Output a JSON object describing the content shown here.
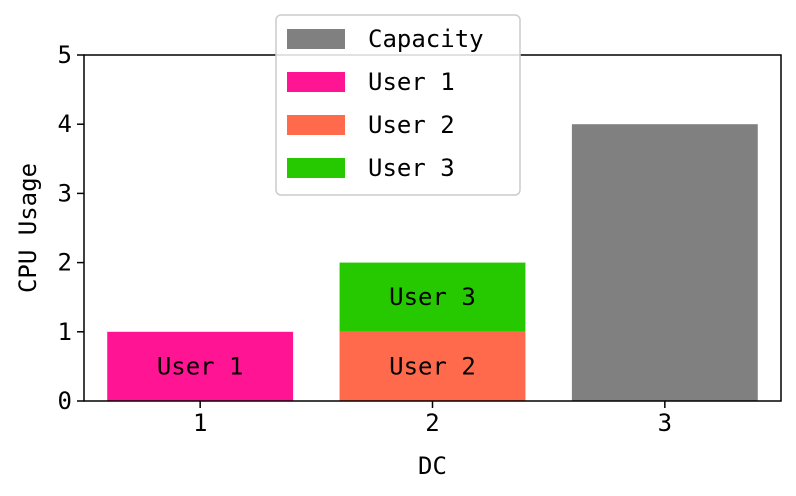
{
  "chart_data": {
    "type": "bar",
    "stacked": true,
    "xlabel": "DC",
    "ylabel": "CPU Usage",
    "categories": [
      "1",
      "2",
      "3"
    ],
    "ylim": [
      0,
      5
    ],
    "yticks": [
      "0",
      "1",
      "2",
      "3",
      "4",
      "5"
    ],
    "grid": false,
    "legend_position": "top-center",
    "series": [
      {
        "name": "Capacity",
        "color": "#808080",
        "values": [
          0,
          0,
          4
        ]
      },
      {
        "name": "User 1",
        "color": "#ff1493",
        "values": [
          1,
          0,
          0
        ]
      },
      {
        "name": "User 2",
        "color": "#ff6a4d",
        "values": [
          0,
          1,
          0
        ]
      },
      {
        "name": "User 3",
        "color": "#26c900",
        "values": [
          0,
          1,
          0
        ]
      }
    ],
    "bar_labels": [
      {
        "category": "1",
        "series": "User 1",
        "text": "User 1"
      },
      {
        "category": "2",
        "series": "User 2",
        "text": "User 2"
      },
      {
        "category": "2",
        "series": "User 3",
        "text": "User 3"
      }
    ]
  }
}
